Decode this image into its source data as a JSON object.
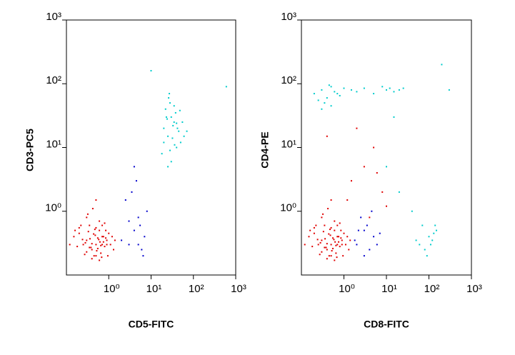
{
  "chart_data": [
    {
      "type": "scatter",
      "xlabel": "CD5-FITC",
      "ylabel": "CD3-PC5",
      "log_x": true,
      "log_y": true,
      "xlim": [
        0.1,
        1000
      ],
      "ylim": [
        0.1,
        1000
      ],
      "xticks": [
        {
          "value": 1,
          "label": "10⁰"
        },
        {
          "value": 10,
          "label": "10¹"
        },
        {
          "value": 100,
          "label": "10²"
        },
        {
          "value": 1000,
          "label": "10³"
        }
      ],
      "yticks": [
        {
          "value": 1,
          "label": "10⁰"
        },
        {
          "value": 10,
          "label": "10¹"
        },
        {
          "value": 100,
          "label": "10²"
        },
        {
          "value": 1000,
          "label": "10³"
        }
      ],
      "series": [
        {
          "color": "#e00000",
          "x": [
            0.3,
            0.5,
            0.7,
            0.4,
            0.6,
            0.25,
            0.9,
            0.35,
            0.45,
            0.8,
            0.2,
            0.55,
            0.65,
            1.1,
            0.3,
            0.5,
            0.75,
            0.4,
            0.15,
            0.6,
            1.3,
            0.28,
            0.48,
            0.85,
            0.38,
            0.58,
            0.22,
            0.95,
            0.33,
            0.7,
            0.42,
            0.52,
            0.18,
            1.2,
            0.62,
            0.27,
            0.8,
            0.36,
            0.47,
            0.12,
            0.68,
            1.0,
            0.32,
            0.55,
            0.24,
            0.9,
            0.44,
            0.6,
            0.2,
            0.75,
            0.5,
            0.3,
            1.4,
            0.4,
            0.65,
            0.16,
            0.85,
            0.35,
            0.5,
            0.7
          ],
          "values": [
            0.35,
            0.3,
            0.4,
            0.25,
            0.5,
            0.3,
            0.35,
            0.6,
            0.2,
            0.28,
            0.45,
            0.38,
            0.22,
            0.3,
            0.8,
            0.55,
            0.33,
            0.18,
            0.4,
            0.7,
            0.25,
            0.32,
            0.42,
            0.5,
            0.27,
            0.36,
            0.6,
            0.2,
            0.48,
            0.3,
            1.1,
            0.24,
            0.28,
            0.4,
            0.33,
            0.21,
            0.65,
            0.37,
            0.52,
            0.3,
            0.19,
            0.45,
            0.9,
            0.26,
            0.36,
            0.3,
            0.44,
            0.17,
            0.55,
            0.4,
            1.5,
            0.23,
            0.35,
            0.31,
            0.29,
            0.5,
            0.38,
            0.27,
            0.2,
            0.6
          ]
        },
        {
          "color": "#0000cc",
          "x": [
            3,
            4,
            5,
            6,
            2.5,
            4.5,
            7,
            3.5,
            5.5,
            8,
            2,
            6.5,
            4,
            3,
            5
          ],
          "values": [
            0.3,
            0.5,
            0.8,
            0.25,
            1.5,
            3,
            0.4,
            2,
            0.6,
            1,
            0.35,
            0.2,
            5,
            0.7,
            0.3
          ]
        },
        {
          "color": "#00cccc",
          "x": [
            20,
            25,
            30,
            35,
            40,
            22,
            28,
            45,
            50,
            18,
            33,
            38,
            26,
            60,
            24,
            30,
            42,
            20,
            55,
            35,
            28,
            70,
            32,
            23,
            48,
            27,
            36,
            40,
            25,
            10,
            600
          ],
          "values": [
            20,
            15,
            30,
            25,
            10,
            40,
            50,
            18,
            12,
            8,
            22,
            35,
            60,
            15,
            28,
            6,
            20,
            12,
            25,
            45,
            9,
            18,
            14,
            30,
            38,
            70,
            11,
            24,
            5,
            160,
            90
          ]
        }
      ]
    },
    {
      "type": "scatter",
      "xlabel": "CD8-FITC",
      "ylabel": "CD4-PE",
      "log_x": true,
      "log_y": true,
      "xlim": [
        0.1,
        1000
      ],
      "ylim": [
        0.1,
        1000
      ],
      "xticks": [
        {
          "value": 1,
          "label": "10⁰"
        },
        {
          "value": 10,
          "label": "10¹"
        },
        {
          "value": 100,
          "label": "10²"
        },
        {
          "value": 1000,
          "label": "10³"
        }
      ],
      "yticks": [
        {
          "value": 1,
          "label": "10⁰"
        },
        {
          "value": 10,
          "label": "10¹"
        },
        {
          "value": 100,
          "label": "10²"
        },
        {
          "value": 1000,
          "label": "10³"
        }
      ],
      "series": [
        {
          "color": "#e00000",
          "x": [
            0.3,
            0.5,
            0.7,
            0.4,
            0.6,
            0.25,
            0.9,
            0.35,
            0.45,
            0.8,
            0.2,
            0.55,
            0.65,
            1.1,
            0.3,
            0.5,
            0.75,
            0.4,
            0.15,
            0.6,
            1.3,
            0.28,
            0.48,
            0.85,
            0.38,
            0.58,
            0.22,
            0.95,
            0.33,
            0.7,
            0.42,
            0.52,
            0.18,
            1.2,
            0.62,
            0.27,
            0.8,
            0.36,
            0.47,
            0.12,
            0.68,
            1.0,
            0.32,
            0.55,
            0.24,
            0.9,
            0.44,
            0.6,
            0.2,
            0.75,
            0.5,
            0.3,
            1.4,
            0.4,
            0.65,
            0.16,
            0.85,
            0.35,
            0.5,
            0.7,
            1.5,
            2,
            3,
            5,
            8,
            0.4,
            1.2,
            4,
            6,
            10
          ],
          "values": [
            0.35,
            0.3,
            0.4,
            0.25,
            0.5,
            0.3,
            0.35,
            0.6,
            0.2,
            0.28,
            0.45,
            0.38,
            0.22,
            0.3,
            0.8,
            0.55,
            0.33,
            0.18,
            0.4,
            0.7,
            0.25,
            0.32,
            0.42,
            0.5,
            0.27,
            0.36,
            0.6,
            0.2,
            0.48,
            0.3,
            1.1,
            0.24,
            0.28,
            0.4,
            0.33,
            0.21,
            0.65,
            0.37,
            0.52,
            0.3,
            0.19,
            0.45,
            0.9,
            0.26,
            0.36,
            0.3,
            0.44,
            0.17,
            0.55,
            0.4,
            1.5,
            0.23,
            0.35,
            0.31,
            0.29,
            0.5,
            0.38,
            0.27,
            0.2,
            0.6,
            3,
            20,
            5,
            10,
            2,
            15,
            1.5,
            0.8,
            4,
            1.2
          ]
        },
        {
          "color": "#0000cc",
          "x": [
            2,
            3,
            4,
            2.5,
            5,
            3.5,
            1.8,
            6,
            4.5,
            3,
            2.2,
            7
          ],
          "values": [
            0.3,
            0.5,
            0.25,
            0.8,
            0.4,
            0.6,
            0.35,
            0.3,
            1,
            0.2,
            0.5,
            0.45
          ]
        },
        {
          "color": "#00cccc",
          "x": [
            0.2,
            0.3,
            0.4,
            0.5,
            0.6,
            0.8,
            1,
            0.25,
            0.35,
            0.45,
            0.7,
            1.5,
            2,
            3,
            5,
            8,
            10,
            12,
            15,
            20,
            0.3,
            0.5,
            25,
            60,
            80,
            100,
            120,
            150,
            70,
            90,
            110,
            130,
            50,
            140,
            40,
            20,
            10,
            200,
            300,
            15
          ],
          "values": [
            70,
            80,
            60,
            90,
            75,
            65,
            85,
            55,
            50,
            95,
            70,
            80,
            75,
            85,
            70,
            90,
            80,
            85,
            75,
            80,
            40,
            45,
            85,
            0.3,
            0.25,
            0.4,
            0.35,
            0.5,
            0.6,
            0.2,
            0.3,
            0.45,
            0.35,
            0.6,
            1,
            2,
            5,
            200,
            80,
            30
          ]
        }
      ]
    }
  ]
}
